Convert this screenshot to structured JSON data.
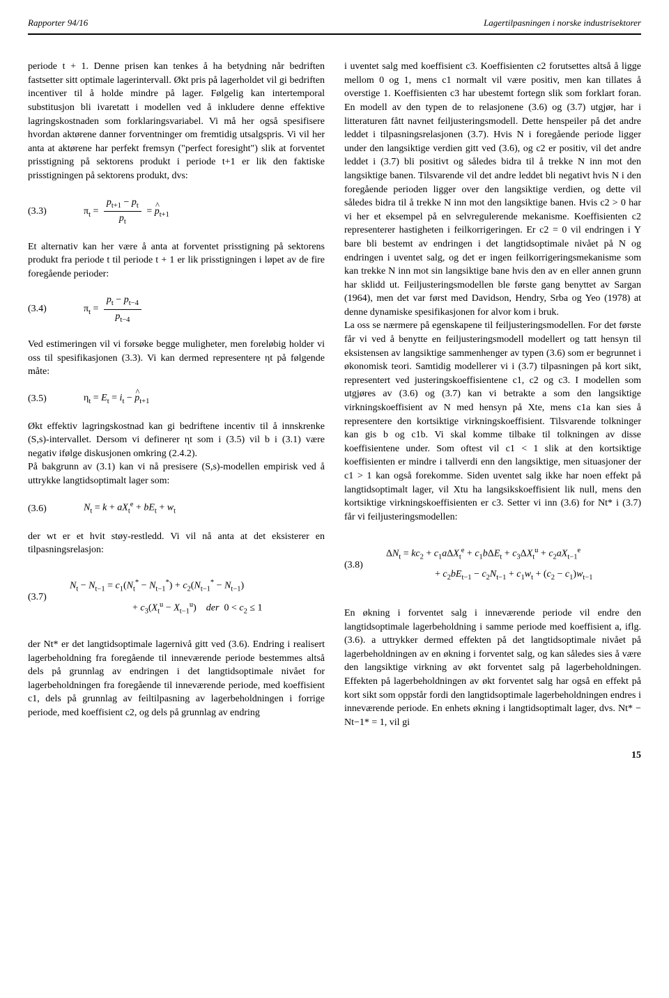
{
  "header": {
    "left": "Rapporter 94/16",
    "right": "Lagertilpasningen i norske industrisektorer"
  },
  "leftCol": {
    "p1": "periode t + 1. Denne prisen kan tenkes å ha betydning når bedriften fastsetter sitt optimale lagerintervall. Økt pris på lagerholdet vil gi bedriften incentiver til å holde mindre på lager. Følgelig kan intertemporal substitusjon bli ivaretatt i modellen ved å inkludere denne effektive lagringskostnaden som forklaringsvariabel. Vi må her også spesifisere hvordan aktørene danner forventninger om fremtidig utsalgspris. Vi vil her anta at aktørene har perfekt fremsyn (\"perfect foresight\") slik at forventet prisstigning på sektorens produkt i periode t+1 er lik den faktiske prisstigningen på sektorens produkt, dvs:",
    "eq33label": "(3.3)",
    "p2": "Et alternativ kan her være å anta at forventet prisstigning på sektorens produkt fra periode t til periode t + 1 er lik prisstigningen i løpet av de fire foregående perioder:",
    "eq34label": "(3.4)",
    "p3": "Ved estimeringen vil vi forsøke begge muligheter, men foreløbig holder vi oss til spesifikasjonen (3.3). Vi kan dermed representere ηt på følgende måte:",
    "eq35label": "(3.5)",
    "p4": "Økt effektiv lagringskostnad kan gi bedriftene incentiv til å innskrenke (S,s)-intervallet. Dersom vi definerer ηt som i (3.5) vil b i (3.1) være negativ ifølge diskusjonen omkring (2.4.2).",
    "p5": "På bakgrunn av (3.1) kan vi nå presisere (S,s)-modellen empirisk ved å uttrykke langtidsoptimalt lager som:",
    "eq36label": "(3.6)",
    "p6": "der wt er et hvit støy-restledd. Vi vil nå anta at det eksisterer en tilpasningsrelasjon:",
    "eq37label": "(3.7)",
    "p7": "der Nt* er det langtidsoptimale lagernivå gitt ved (3.6). Endring i realisert lagerbeholdning fra foregående til inneværende periode bestemmes altså dels på grunnlag av endringen i det langtidsoptimale nivået for lagerbeholdningen fra foregående til inneværende periode, med koeffisient c1, dels på grunnlag av feiltilpasning av lagerbeholdningen i forrige periode, med koeffisient c2, og dels på grunnlag av endring"
  },
  "rightCol": {
    "p1": "i uventet salg med koeffisient c3. Koeffisienten c2 forutsettes altså å ligge mellom 0 og 1, mens c1 normalt vil være positiv, men kan tillates å overstige 1. Koeffisienten c3 har ubestemt fortegn slik som forklart foran. En modell av den typen de to relasjonene (3.6) og (3.7) utgjør, har i litteraturen fått navnet feiljusteringsmodell. Dette henspeiler på det andre leddet i tilpasningsrelasjonen (3.7). Hvis N i foregående periode ligger under den langsiktige verdien gitt ved (3.6), og c2 er positiv, vil det andre leddet i (3.7) bli positivt og således bidra til å trekke N inn mot den langsiktige banen. Tilsvarende vil det andre leddet bli negativt hvis N i den foregående perioden ligger over den langsiktige verdien, og dette vil således bidra til å trekke N inn mot den langsiktige banen. Hvis c2 > 0 har vi her et eksempel på en selvregulerende mekanisme. Koeffisienten c2 representerer hastigheten i feilkorrigeringen. Er c2 = 0 vil endringen i Y bare bli bestemt av endringen i det langtidsoptimale nivået på N og endringen i uventet salg, og det er ingen feilkorrigeringsmekanisme som kan trekke N inn mot sin langsiktige bane hvis den av en eller annen grunn har sklidd ut. Feiljusteringsmodellen ble første gang benyttet av Sargan (1964), men det var først med Davidson, Hendry, Srba og Yeo (1978) at denne dynamiske spesifikasjonen for alvor kom i bruk.",
    "p2": "La oss se nærmere på egenskapene til feiljusteringsmodellen. For det første får vi ved å benytte en feiljusteringsmodell modellert og tatt hensyn til eksistensen av langsiktige sammenhenger av typen (3.6) som er begrunnet i økonomisk teori. Samtidig modellerer vi i (3.7) tilpasningen på kort sikt, representert ved justeringskoeffisientene c1, c2 og c3. I modellen som utgjøres av (3.6) og (3.7) kan vi betrakte a som den langsiktige virkningskoeffisient av N med hensyn på Xte, mens c1a kan sies å representere den kortsiktige virkningskoeffisient. Tilsvarende tolkninger kan gis b og c1b. Vi skal komme tilbake til tolkningen av disse koeffisientene under. Som oftest vil c1 < 1 slik at den kortsiktige koeffisienten er mindre i tallverdi enn den langsiktige, men situasjoner der c1 > 1 kan også forekomme. Siden uventet salg ikke har noen effekt på langtidsoptimalt lager, vil Xtu ha langsikskoeffisient lik null, mens den kortsiktige virkningskoeffisienten er c3. Setter vi inn (3.6) for Nt* i (3.7) får vi feiljusteringsmodellen:",
    "eq38label": "(3.8)",
    "p3": "En økning i forventet salg i inneværende periode vil endre den langtidsoptimale lagerbeholdning i samme periode med koeffisient a, iflg. (3.6). a uttrykker dermed effekten på det langtidsoptimale nivået på lagerbeholdningen av en økning i forventet salg, og kan således sies å være den langsiktige virkning av økt forventet salg på lagerbeholdningen. Effekten på lagerbeholdningen av økt forventet salg har også en effekt på kort sikt som oppstår fordi den langtidsoptimale lagerbeholdningen endres i inneværende periode. En enhets økning i langtidsoptimalt lager, dvs. Nt* − Nt−1* = 1, vil gi"
  },
  "pageNumber": "15"
}
